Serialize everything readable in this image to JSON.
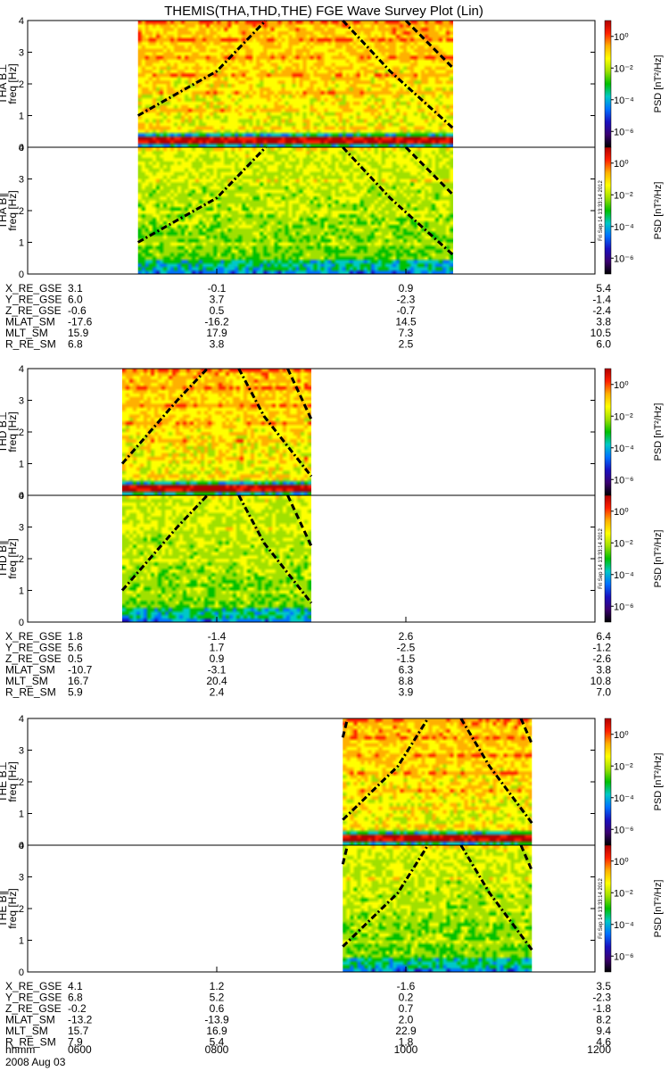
{
  "title": "THEMIS(THA,THD,THE) FGE Wave Survey Plot (Lin)",
  "date_label": "2008 Aug 03",
  "timestamp_label": "Fri Sep 14 13:33:14 2012",
  "colorbar": {
    "label": "PSD [nT²/Hz]",
    "ticks": [
      "10⁰",
      "10⁻²",
      "10⁻⁴",
      "10⁻⁶"
    ],
    "tick_exponents": [
      0,
      -2,
      -4,
      -6
    ],
    "range_exponents": [
      -7,
      1
    ],
    "colors": [
      "#000000",
      "#3a0070",
      "#1a10c0",
      "#0070ff",
      "#00c8c8",
      "#00c000",
      "#a0e000",
      "#ffff00",
      "#ffb000",
      "#ff2000",
      "#b00000"
    ]
  },
  "chart_data": {
    "type": "heatmap",
    "xlabel": "hhmm",
    "x_ticks": [
      "0600",
      "0800",
      "1000",
      "1200"
    ],
    "x_range_hhmm": [
      "0600",
      "1200"
    ],
    "freq_ticks": [
      "0",
      "1",
      "2",
      "3",
      "4"
    ],
    "ylim": [
      0,
      4
    ],
    "ylabel": "freq [Hz]",
    "probes": [
      {
        "probe": "THA",
        "data_interval": [
          "0710",
          "1030"
        ],
        "panels": [
          {
            "name": "THA B⊥",
            "ylabel": "THA B⊥",
            "low_freq_band": "strong"
          },
          {
            "name": "THA B∥",
            "ylabel": "THA B∥",
            "low_freq_band": "weak"
          }
        ],
        "curves": [
          {
            "style": "dash-dot",
            "points": [
              [
                "0710",
                1.0
              ],
              [
                "0800",
                2.4
              ],
              [
                "0831",
                4.0
              ]
            ]
          },
          {
            "style": "dash-dot",
            "points": [
              [
                "0920",
                4.0
              ],
              [
                "0950",
                2.4
              ],
              [
                "1030",
                0.6
              ]
            ]
          },
          {
            "style": "dashed",
            "points": [
              [
                "1000",
                4.0
              ],
              [
                "1030",
                2.5
              ]
            ]
          }
        ],
        "ephemeris": [
          {
            "label": "X_RE_GSE",
            "values": [
              "3.1",
              "-0.1",
              "0.9",
              "5.4"
            ]
          },
          {
            "label": "Y_RE_GSE",
            "values": [
              "6.0",
              "3.7",
              "-2.3",
              "-1.4"
            ]
          },
          {
            "label": "Z_RE_GSE",
            "values": [
              "-0.6",
              "0.5",
              "-0.7",
              "-2.4"
            ]
          },
          {
            "label": "MLAT_SM",
            "values": [
              "-17.6",
              "-16.2",
              "14.5",
              "3.8"
            ]
          },
          {
            "label": "MLT_SM",
            "values": [
              "15.9",
              "17.9",
              "7.3",
              "10.5"
            ]
          },
          {
            "label": "R_RE_SM",
            "values": [
              "6.8",
              "3.8",
              "2.5",
              "6.0"
            ]
          }
        ]
      },
      {
        "probe": "THD",
        "data_interval": [
          "0700",
          "0900"
        ],
        "panels": [
          {
            "name": "THD B⊥",
            "ylabel": "THD B⊥",
            "low_freq_band": "strong"
          },
          {
            "name": "THD B∥",
            "ylabel": "THD B∥",
            "low_freq_band": "weak"
          }
        ],
        "curves": [
          {
            "style": "dash-dot",
            "points": [
              [
                "0700",
                1.0
              ],
              [
                "0735",
                3.0
              ],
              [
                "0754",
                4.0
              ]
            ]
          },
          {
            "style": "dash-dot",
            "points": [
              [
                "0814",
                4.0
              ],
              [
                "0830",
                2.5
              ],
              [
                "0900",
                0.6
              ]
            ]
          },
          {
            "style": "dashed",
            "points": [
              [
                "0845",
                4.0
              ],
              [
                "0900",
                2.4
              ]
            ]
          }
        ],
        "ephemeris": [
          {
            "label": "X_RE_GSE",
            "values": [
              "1.8",
              "-1.4",
              "2.6",
              "6.4"
            ]
          },
          {
            "label": "Y_RE_GSE",
            "values": [
              "5.6",
              "1.7",
              "-2.5",
              "-1.2"
            ]
          },
          {
            "label": "Z_RE_GSE",
            "values": [
              "0.5",
              "0.9",
              "-1.5",
              "-2.6"
            ]
          },
          {
            "label": "MLAT_SM",
            "values": [
              "-10.7",
              "-3.1",
              "6.3",
              "3.8"
            ]
          },
          {
            "label": "MLT_SM",
            "values": [
              "16.7",
              "20.4",
              "8.8",
              "10.8"
            ]
          },
          {
            "label": "R_RE_SM",
            "values": [
              "5.9",
              "2.4",
              "3.9",
              "7.0"
            ]
          }
        ]
      },
      {
        "probe": "THE",
        "data_interval": [
          "0920",
          "1120"
        ],
        "panels": [
          {
            "name": "THE B⊥",
            "ylabel": "THE B⊥",
            "low_freq_band": "strong"
          },
          {
            "name": "THE B∥",
            "ylabel": "THE B∥",
            "low_freq_band": "weak"
          }
        ],
        "curves": [
          {
            "style": "dashed",
            "points": [
              [
                "0920",
                3.4
              ],
              [
                "0923",
                4.0
              ]
            ]
          },
          {
            "style": "dash-dot",
            "points": [
              [
                "0920",
                0.8
              ],
              [
                "0955",
                2.5
              ],
              [
                "1014",
                4.0
              ]
            ]
          },
          {
            "style": "dash-dot",
            "points": [
              [
                "1035",
                4.0
              ],
              [
                "1053",
                2.5
              ],
              [
                "1120",
                0.7
              ]
            ]
          },
          {
            "style": "dashed",
            "points": [
              [
                "1113",
                4.0
              ],
              [
                "1120",
                3.2
              ]
            ]
          }
        ],
        "ephemeris": [
          {
            "label": "X_RE_GSE",
            "values": [
              "4.1",
              "1.2",
              "-1.6",
              "3.5"
            ]
          },
          {
            "label": "Y_RE_GSE",
            "values": [
              "6.8",
              "5.2",
              "0.2",
              "-2.3"
            ]
          },
          {
            "label": "Z_RE_GSE",
            "values": [
              "-0.2",
              "0.6",
              "0.7",
              "-1.8"
            ]
          },
          {
            "label": "MLAT_SM",
            "values": [
              "-13.2",
              "-13.9",
              "2.0",
              "8.2"
            ]
          },
          {
            "label": "MLT_SM",
            "values": [
              "15.7",
              "16.9",
              "22.9",
              "9.4"
            ]
          },
          {
            "label": "R_RE_SM",
            "values": [
              "7.9",
              "5.4",
              "1.8",
              "4.6"
            ]
          }
        ]
      }
    ]
  }
}
